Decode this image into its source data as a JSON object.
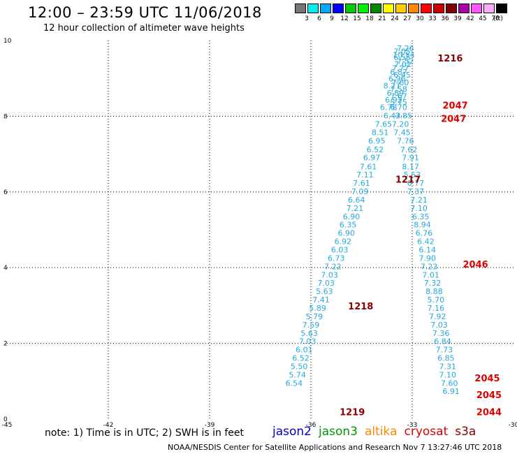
{
  "title": "12:00 – 23:59 UTC 11/06/2018",
  "subtitle": "12 hour collection of altimeter wave heights",
  "note": "note:  1) Time is in UTC;  2) SWH is in feet",
  "footer": "NOAA/NESDIS Center for Satellite Applications and Research   Nov  7 13:27:46 UTC 2018",
  "legend": [
    {
      "name": "jason2",
      "color": "#0000cc"
    },
    {
      "name": "jason3",
      "color": "#009900"
    },
    {
      "name": "altika",
      "color": "#ff8800"
    },
    {
      "name": "cryosat",
      "color": "#dd0000"
    },
    {
      "name": "s3a",
      "color": "#880000"
    }
  ],
  "color_scale": {
    "unit": "(ft)",
    "bins": [
      {
        "label": "3",
        "color": "#777777"
      },
      {
        "label": "6",
        "color": "#00eeee"
      },
      {
        "label": "9",
        "color": "#00aaff"
      },
      {
        "label": "12",
        "color": "#0000ff"
      },
      {
        "label": "15",
        "color": "#00cc00"
      },
      {
        "label": "18",
        "color": "#00ee00"
      },
      {
        "label": "21",
        "color": "#008800"
      },
      {
        "label": "24",
        "color": "#ffff00"
      },
      {
        "label": "27",
        "color": "#ffcc00"
      },
      {
        "label": "30",
        "color": "#ff8800"
      },
      {
        "label": "33",
        "color": "#ff0000"
      },
      {
        "label": "36",
        "color": "#cc0000"
      },
      {
        "label": "39",
        "color": "#880000"
      },
      {
        "label": "42",
        "color": "#aa00aa"
      },
      {
        "label": "45",
        "color": "#ff55ff"
      },
      {
        "label": "70",
        "color": "#ffaaff"
      },
      {
        "label": "",
        "color": "#000000"
      }
    ]
  },
  "chart_data": {
    "type": "scatter",
    "xlim": [
      -45,
      -30
    ],
    "ylim": [
      0,
      10
    ],
    "x_ticks": [
      -45,
      -42,
      -39,
      -36,
      -33,
      -30
    ],
    "y_ticks": [
      0,
      2,
      4,
      6,
      8,
      10
    ],
    "grid": true,
    "point_color": "#22aadd",
    "label_colors": {
      "s3a": "#880000",
      "cryosat": "#dd0000"
    },
    "tracks": [
      {
        "points": [
          [
            -33.2,
            9.72,
            "7.26"
          ],
          [
            -33.3,
            9.64,
            "7.05"
          ],
          [
            -33.25,
            9.55,
            "10.54"
          ],
          [
            -33.3,
            9.48,
            "6.55"
          ],
          [
            -33.2,
            9.38,
            "7.52"
          ],
          [
            -33.28,
            9.3,
            "7.01"
          ],
          [
            -33.35,
            9.2,
            "7.77"
          ],
          [
            -33.4,
            9.1,
            "6.87"
          ],
          [
            -33.3,
            9.02,
            "6.45"
          ],
          [
            -33.45,
            8.92,
            "6.96"
          ],
          [
            -33.35,
            8.82,
            "7.60"
          ],
          [
            -33.6,
            8.74,
            "8.27"
          ],
          [
            -33.4,
            8.64,
            "7.58"
          ],
          [
            -33.5,
            8.54,
            "6.89"
          ],
          [
            -33.4,
            8.46,
            "7.67"
          ],
          [
            -33.55,
            8.36,
            "6.92"
          ],
          [
            -33.4,
            8.3,
            "5.75"
          ],
          [
            -33.7,
            8.16,
            "6.78"
          ],
          [
            -33.4,
            8.16,
            "6.70"
          ],
          [
            -33.6,
            7.94,
            "6.43"
          ],
          [
            -33.25,
            7.94,
            "7.85"
          ],
          [
            -33.85,
            7.72,
            "7.65"
          ],
          [
            -33.35,
            7.72,
            "7.20"
          ],
          [
            -33.95,
            7.5,
            "8.51"
          ],
          [
            -33.3,
            7.5,
            "7.45"
          ],
          [
            -34.05,
            7.28,
            "6.95"
          ],
          [
            -33.2,
            7.28,
            "7.76"
          ],
          [
            -34.1,
            7.05,
            "6.52"
          ],
          [
            -33.1,
            7.05,
            "7.62"
          ],
          [
            -34.2,
            6.84,
            "6.97"
          ],
          [
            -33.05,
            6.84,
            "7.91"
          ],
          [
            -34.3,
            6.6,
            "7.61"
          ],
          [
            -33.05,
            6.6,
            "8.17"
          ],
          [
            -34.4,
            6.38,
            "7.11"
          ],
          [
            -33.0,
            6.38,
            "5.53"
          ],
          [
            -34.5,
            6.16,
            "7.61"
          ],
          [
            -32.9,
            6.16,
            "6.77"
          ],
          [
            -34.55,
            5.94,
            "7.09"
          ],
          [
            -32.9,
            5.94,
            "7.37"
          ],
          [
            -34.65,
            5.72,
            "6.64"
          ],
          [
            -32.8,
            5.72,
            "7.21"
          ],
          [
            -34.7,
            5.5,
            "7.21"
          ],
          [
            -32.8,
            5.5,
            "7.10"
          ],
          [
            -34.8,
            5.28,
            "6.90"
          ],
          [
            -32.75,
            5.28,
            "6.35"
          ],
          [
            -34.9,
            5.06,
            "6.35"
          ],
          [
            -32.7,
            5.06,
            "8.94"
          ],
          [
            -34.95,
            4.84,
            "6.90"
          ],
          [
            -32.65,
            4.84,
            "6.76"
          ],
          [
            -35.05,
            4.62,
            "6.92"
          ],
          [
            -32.6,
            4.62,
            "6.42"
          ],
          [
            -35.15,
            4.4,
            "6.03"
          ],
          [
            -32.55,
            4.4,
            "6.14"
          ],
          [
            -35.25,
            4.18,
            "6.73"
          ],
          [
            -32.55,
            4.18,
            "7.90"
          ],
          [
            -35.35,
            3.96,
            "7.22"
          ],
          [
            -32.5,
            3.96,
            "7.23"
          ],
          [
            -35.45,
            3.74,
            "7.03"
          ],
          [
            -32.45,
            3.74,
            "7.01"
          ],
          [
            -35.55,
            3.52,
            "7.03"
          ],
          [
            -32.4,
            3.52,
            "7.32"
          ],
          [
            -35.6,
            3.3,
            "5.63"
          ],
          [
            -32.35,
            3.3,
            "8.88"
          ],
          [
            -35.7,
            3.08,
            "7.41"
          ],
          [
            -32.3,
            3.08,
            "5.70"
          ],
          [
            -35.8,
            2.86,
            "5.89"
          ],
          [
            -32.3,
            2.86,
            "7.16"
          ],
          [
            -35.9,
            2.64,
            "5.79"
          ],
          [
            -32.25,
            2.64,
            "7.92"
          ],
          [
            -36.0,
            2.42,
            "7.59"
          ],
          [
            -32.2,
            2.42,
            "7.03"
          ],
          [
            -36.05,
            2.2,
            "5.63"
          ],
          [
            -32.15,
            2.2,
            "7.36"
          ],
          [
            -36.1,
            1.98,
            "7.03"
          ],
          [
            -32.1,
            1.98,
            "6.84"
          ],
          [
            -36.2,
            1.76,
            "6.01"
          ],
          [
            -32.05,
            1.76,
            "7.73"
          ],
          [
            -36.3,
            1.54,
            "6.52"
          ],
          [
            -32.0,
            1.54,
            "6.85"
          ],
          [
            -36.35,
            1.32,
            "5.50"
          ],
          [
            -31.95,
            1.32,
            "7.31"
          ],
          [
            -36.4,
            1.1,
            "5.74"
          ],
          [
            -31.95,
            1.1,
            "7.10"
          ],
          [
            -36.5,
            0.88,
            "6.54"
          ],
          [
            -31.9,
            0.88,
            "7.60"
          ],
          [
            -31.85,
            0.66,
            "6.91"
          ]
        ]
      }
    ],
    "time_labels": [
      {
        "x": -32.25,
        "y": 9.45,
        "text": "1216",
        "satellite": "s3a"
      },
      {
        "x": -32.1,
        "y": 8.2,
        "text": "2047",
        "satellite": "cryosat"
      },
      {
        "x": -32.15,
        "y": 7.85,
        "text": "2047",
        "satellite": "cryosat"
      },
      {
        "x": -33.5,
        "y": 6.25,
        "text": "1217",
        "satellite": "s3a"
      },
      {
        "x": -31.5,
        "y": 4.0,
        "text": "2046",
        "satellite": "cryosat"
      },
      {
        "x": -34.9,
        "y": 2.9,
        "text": "1218",
        "satellite": "s3a"
      },
      {
        "x": -31.15,
        "y": 1.0,
        "text": "2045",
        "satellite": "cryosat"
      },
      {
        "x": -31.1,
        "y": 0.55,
        "text": "2045",
        "satellite": "cryosat"
      },
      {
        "x": -31.1,
        "y": 0.1,
        "text": "2044",
        "satellite": "cryosat"
      },
      {
        "x": -35.15,
        "y": 0.1,
        "text": "1219",
        "satellite": "s3a"
      }
    ]
  }
}
